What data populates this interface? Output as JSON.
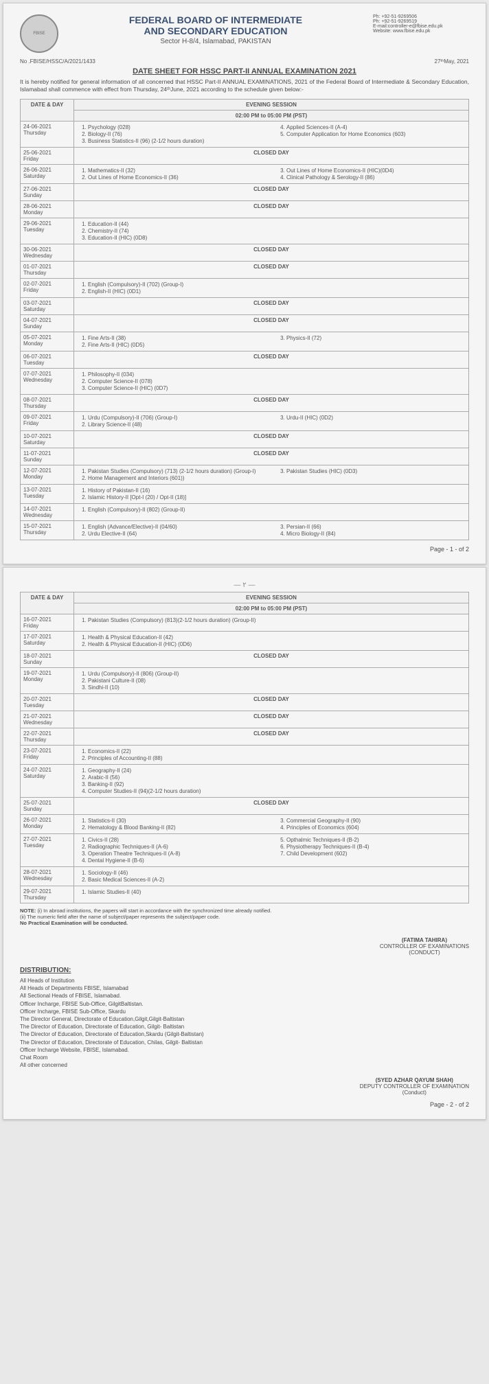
{
  "header": {
    "org_line1": "FEDERAL BOARD OF INTERMEDIATE",
    "org_line2": "AND SECONDARY EDUCATION",
    "address": "Sector H-8/4, Islamabad, PAKISTAN",
    "contact_ph1": "Ph: +92-51-9269506",
    "contact_ph2": "Ph: +92-51-9269519",
    "contact_email": "E-mail:controller-e@fbise.edu.pk",
    "contact_web": "Website: www.fbise.edu.pk",
    "ref_no": "No .FBISE/HSSC/A/2021/1433",
    "date": "27ᵗʰMay, 2021",
    "doc_title": "DATE SHEET FOR HSSC PART-II ANNUAL EXAMINATION 2021",
    "intro": "It is hereby notified for general information of all concerned that HSSC Part-II ANNUAL EXAMINATIONS, 2021 of the Federal Board of Intermediate & Secondary Education, Islamabad shall commence with effect from Thursday, 24ᵗʰJune, 2021 according to the schedule given below:-"
  },
  "table": {
    "col_date": "DATE & DAY",
    "col_session": "EVENING SESSION",
    "col_time": "02:00 PM to 05:00 PM (PST)",
    "closed": "CLOSED DAY"
  },
  "page1_rows": [
    {
      "date": "24-06-2021",
      "day": "Thursday",
      "left": [
        "Psychology (028)",
        "Biology-II (76)",
        "Business Statistics-II (96) (2-1/2 hours duration)"
      ],
      "right_start": 4,
      "right": [
        "Applied Sciences-II (A-4)",
        "Computer Application for Home Economics (603)"
      ]
    },
    {
      "date": "25-06-2021",
      "day": "Friday",
      "closed": true
    },
    {
      "date": "26-06-2021",
      "day": "Saturday",
      "left": [
        "Mathematics-II (32)",
        "Out Lines of Home Economics-II (36)"
      ],
      "right_start": 3,
      "right": [
        "Out Lines of Home Economics-II (HIC)(0D4)",
        "Clinical Pathology & Serology-II (86)"
      ]
    },
    {
      "date": "27-06-2021",
      "day": "Sunday",
      "closed": true
    },
    {
      "date": "28-06-2021",
      "day": "Monday",
      "closed": true
    },
    {
      "date": "29-06-2021",
      "day": "Tuesday",
      "left": [
        "Education-II (44)",
        "Chemistry-II (74)",
        "Education-II (HIC) (0D8)"
      ]
    },
    {
      "date": "30-06-2021",
      "day": "Wednesday",
      "closed": true
    },
    {
      "date": "01-07-2021",
      "day": "Thursday",
      "closed": true
    },
    {
      "date": "02-07-2021",
      "day": "Friday",
      "left": [
        "English (Compulsory)-II (702) (Group-I)",
        "English-II (HIC) (0D1)"
      ]
    },
    {
      "date": "03-07-2021",
      "day": "Saturday",
      "closed": true
    },
    {
      "date": "04-07-2021",
      "day": "Sunday",
      "closed": true
    },
    {
      "date": "05-07-2021",
      "day": "Monday",
      "left": [
        "Fine Arts-II (38)",
        "Fine Arts-II (HIC) (0D5)"
      ],
      "right_start": 3,
      "right": [
        "Physics-II (72)"
      ]
    },
    {
      "date": "06-07-2021",
      "day": "Tuesday",
      "closed": true
    },
    {
      "date": "07-07-2021",
      "day": "Wednesday",
      "left": [
        "Philosophy-II (034)",
        "Computer Science-II (078)",
        "Computer Science-II (HIC) (0D7)"
      ]
    },
    {
      "date": "08-07-2021",
      "day": "Thursday",
      "closed": true
    },
    {
      "date": "09-07-2021",
      "day": "Friday",
      "left": [
        "Urdu (Compulsory)-II (706) (Group-I)",
        "Library Science-II (48)"
      ],
      "right_start": 3,
      "right": [
        "Urdu-II (HIC) (0D2)"
      ]
    },
    {
      "date": "10-07-2021",
      "day": "Saturday",
      "closed": true
    },
    {
      "date": "11-07-2021",
      "day": "Sunday",
      "closed": true
    },
    {
      "date": "12-07-2021",
      "day": "Monday",
      "left": [
        "Pakistan Studies (Compulsory) (713) (2-1/2 hours duration) (Group-I)",
        "Home Management and Interiors (601))"
      ],
      "right_start": 3,
      "right": [
        "Pakistan Studies (HIC) (0D3)"
      ]
    },
    {
      "date": "13-07-2021",
      "day": "Tuesday",
      "left": [
        "History of Pakistan-II (16)",
        "Islamic History-II [Opt-I (20) / Opt-II (18)]"
      ]
    },
    {
      "date": "14-07-2021",
      "day": "Wednesday",
      "left": [
        "English (Compulsory)-II (802) (Group-II)"
      ]
    },
    {
      "date": "15-07-2021",
      "day": "Thursday",
      "left": [
        "English (Advance/Elective)-II (04/60)",
        "Urdu Elective-II (64)"
      ],
      "right_start": 3,
      "right": [
        "Persian-II (66)",
        "Micro Biology-II (84)"
      ]
    }
  ],
  "page1_foot": "Page - 1 - of 2",
  "page2_rows": [
    {
      "date": "16-07-2021",
      "day": "Friday",
      "left": [
        "Pakistan Studies (Compulsory) (813)(2-1/2 hours duration) (Group-II)"
      ]
    },
    {
      "date": "17-07-2021",
      "day": "Saturday",
      "left": [
        "Health & Physical Education-II (42)",
        "Health & Physical Education-II (HIC) (0D6)"
      ]
    },
    {
      "date": "18-07-2021",
      "day": "Sunday",
      "closed": true
    },
    {
      "date": "19-07-2021",
      "day": "Monday",
      "left": [
        "Urdu (Compulsory)-II (806) (Group-II)",
        "Pakistani Culture-II (08)",
        "Sindhi-II (10)"
      ]
    },
    {
      "date": "20-07-2021",
      "day": "Tuesday",
      "closed": true
    },
    {
      "date": "21-07-2021",
      "day": "Wednesday",
      "closed": true
    },
    {
      "date": "22-07-2021",
      "day": "Thursday",
      "closed": true
    },
    {
      "date": "23-07-2021",
      "day": "Friday",
      "left": [
        "Economics-II (22)",
        "Principles of Accounting-II (88)"
      ]
    },
    {
      "date": "24-07-2021",
      "day": "Saturday",
      "left": [
        "Geography-II (24)",
        "Arabic-II (56)",
        "Banking-II (92)",
        "Computer Studies-II (94)(2-1/2 hours duration)"
      ]
    },
    {
      "date": "25-07-2021",
      "day": "Sunday",
      "closed": true
    },
    {
      "date": "26-07-2021",
      "day": "Monday",
      "left": [
        "Statistics-II (30)",
        "Hematology & Blood Banking-II (82)"
      ],
      "right_start": 3,
      "right": [
        "Commercial Geography-II (90)",
        "Principles of Economics (604)"
      ]
    },
    {
      "date": "27-07-2021",
      "day": "Tuesday",
      "left": [
        "Civics-II (28)",
        "Radiographic Techniques-II (A-6)",
        "Operation Theatre Techniques-II (A-8)",
        "Dental Hygiene-II (B-6)"
      ],
      "right_start": 5,
      "right": [
        "Opthalmic Techniques-II (B-2)",
        "Physiotherapy Techniques-II (B-4)",
        "Child Development (602)"
      ]
    },
    {
      "date": "28-07-2021",
      "day": "Wednesday",
      "left": [
        "Sociology-II (46)",
        "Basic Medical Sciences-II (A-2)"
      ]
    },
    {
      "date": "29-07-2021",
      "day": "Thursday",
      "left": [
        "Islamic Studies-II (40)"
      ]
    }
  ],
  "notes": {
    "label": "NOTE:",
    "i": "(i)   In abroad institutions, the papers will start in accordance with the synchronized time already notified.",
    "ii": "(ii)   The numeric field after the name of subject/paper represents the subject/paper code.",
    "iii": "No Practical Examination will be conducted."
  },
  "sig1": {
    "name": "(FATIMA TAHIRA)",
    "title1": "CONTROLLER OF EXAMINATIONS",
    "title2": "(CONDUCT)"
  },
  "distribution": {
    "title": "DISTRIBUTION:",
    "items": [
      "All Heads of Institution",
      "All Heads of Departments FBISE, Islamabad",
      "All Sectional Heads of FBISE, Islamabad.",
      "Officer Incharge, FBISE Sub-Office, GilgitBaltistan.",
      "Officer Incharge, FBISE Sub-Office, Skardu",
      "The Director General, Directorate of Education,Gilgit,Gilgit-Baltistan",
      "The Director of Education, Directorate of Education, Gilgit- Baltistan",
      "The Director of Education, Directorate of Education,Skardu (Gilgit-Baltistan)",
      "The Director of Education, Directorate of Education, Chilas, Gilgit- Baltistan",
      "Officer Incharge Website, FBISE, Islamabad.",
      "Chat Room",
      "All other concerned"
    ]
  },
  "sig2": {
    "name": "(SYED AZHAR QAYUM SHAH)",
    "title1": "DEPUTY CONTROLLER OF EXAMINATION",
    "title2": "(Conduct)"
  },
  "page2_foot": "Page - 2 - of 2"
}
